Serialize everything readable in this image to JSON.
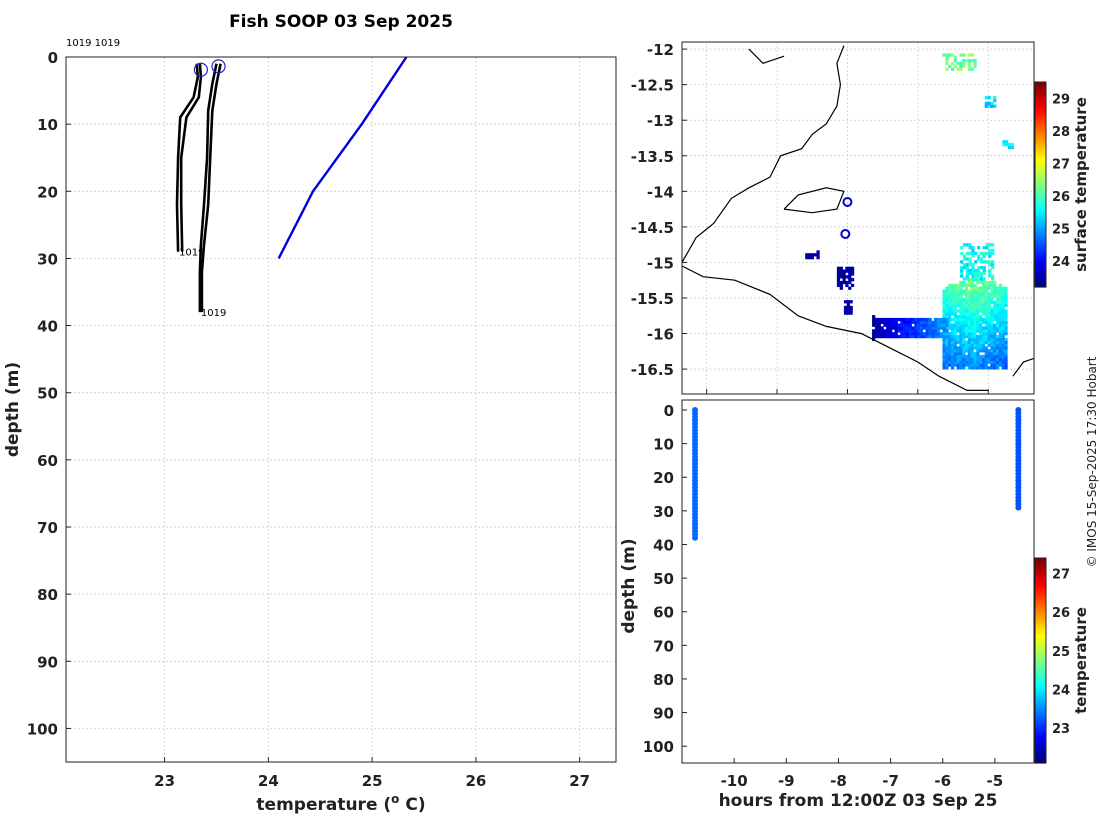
{
  "title": "Fish SOOP 03 Sep 2025",
  "credit": "© IMOS 15-Sep-2025 17:30 Hobart",
  "profile_ids": [
    "1019",
    "1019"
  ],
  "colors": {
    "profile": "#000000",
    "climatology": "#0000dd",
    "marker": "#2222cc",
    "land": "#000000"
  },
  "chart_data": [
    {
      "type": "line",
      "name": "temperature-depth-profiles",
      "xlabel": "temperature (° C)",
      "ylabel": "depth (m)",
      "xlim": [
        22.05,
        27.35
      ],
      "ylim": [
        105,
        0
      ],
      "xticks": [
        23,
        24,
        25,
        26,
        27
      ],
      "yticks": [
        0,
        10,
        20,
        30,
        40,
        50,
        60,
        70,
        80,
        90,
        100
      ],
      "grid": true,
      "series": [
        {
          "label": "1019",
          "color": "#000000",
          "points": [
            [
              23.31,
              1
            ],
            [
              23.32,
              3
            ],
            [
              23.28,
              6
            ],
            [
              23.15,
              9
            ],
            [
              23.13,
              15
            ],
            [
              23.12,
              22
            ],
            [
              23.13,
              29
            ]
          ]
        },
        {
          "label": "",
          "color": "#000000",
          "points": [
            [
              23.34,
              1
            ],
            [
              23.35,
              3
            ],
            [
              23.33,
              6
            ],
            [
              23.21,
              9
            ],
            [
              23.16,
              15
            ],
            [
              23.16,
              22
            ],
            [
              23.17,
              29
            ]
          ]
        },
        {
          "label": "1019",
          "color": "#000000",
          "points": [
            [
              23.5,
              1
            ],
            [
              23.46,
              4
            ],
            [
              23.42,
              8
            ],
            [
              23.41,
              15
            ],
            [
              23.38,
              22
            ],
            [
              23.35,
              28
            ],
            [
              23.34,
              32
            ],
            [
              23.34,
              38
            ]
          ]
        },
        {
          "label": "",
          "color": "#000000",
          "points": [
            [
              23.54,
              1
            ],
            [
              23.5,
              4
            ],
            [
              23.46,
              8
            ],
            [
              23.44,
              15
            ],
            [
              23.42,
              22
            ],
            [
              23.38,
              28
            ],
            [
              23.36,
              32
            ],
            [
              23.36,
              38
            ]
          ]
        },
        {
          "label": "",
          "color": "#0000dd",
          "points": [
            [
              25.33,
              0
            ],
            [
              24.9,
              10
            ],
            [
              24.43,
              20
            ],
            [
              24.1,
              30
            ]
          ]
        }
      ],
      "markers": [
        [
          23.35,
          1
        ],
        [
          23.52,
          0.5
        ]
      ]
    },
    {
      "type": "heatmap",
      "name": "surface-temperature-map",
      "xlim": [
        124.65,
        129.65
      ],
      "ylim": [
        -16.85,
        -11.9
      ],
      "xticks": [
        125,
        126,
        127,
        128,
        129
      ],
      "yticks": [
        -12,
        -12.5,
        -13,
        -13.5,
        -14,
        -14.5,
        -15,
        -15.5,
        -16,
        -16.5
      ],
      "grid": true,
      "colorbar": {
        "label": "surface temperature",
        "range": [
          23.2,
          29.5
        ],
        "ticks": [
          24,
          25,
          26,
          27,
          28,
          29
        ]
      },
      "stations": [
        [
          127.0,
          -14.15
        ],
        [
          126.97,
          -14.6
        ]
      ]
    },
    {
      "type": "scatter",
      "name": "depth-time-section",
      "xlabel": "hours from 12:00Z 03 Sep 25",
      "ylabel": "depth (m)",
      "xlim": [
        -11.0,
        -4.25
      ],
      "ylim": [
        105,
        0
      ],
      "xticks": [
        -10,
        -9,
        -8,
        -7,
        -6,
        -5
      ],
      "yticks": [
        0,
        10,
        20,
        30,
        40,
        50,
        60,
        70,
        80,
        90,
        100
      ],
      "colorbar": {
        "label": "temperature",
        "range": [
          22.1,
          27.4
        ],
        "ticks": [
          23,
          24,
          25,
          26,
          27
        ]
      },
      "casts": [
        {
          "hour": -10.75,
          "max_depth": 38,
          "temperature": 23.3
        },
        {
          "hour": -4.55,
          "max_depth": 29,
          "temperature": 23.2
        }
      ]
    }
  ]
}
